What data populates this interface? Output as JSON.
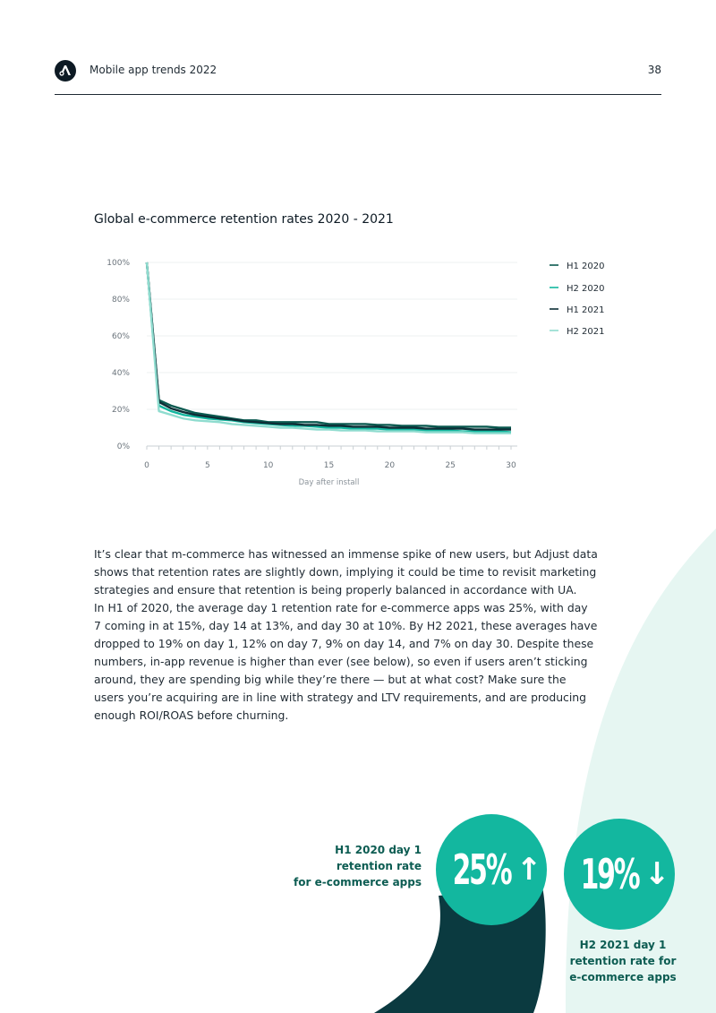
{
  "header": {
    "title": "Mobile app trends 2022",
    "page_number": "38",
    "logo_icon": "adjust-logo-icon"
  },
  "chart_data": {
    "type": "line",
    "title": "Global e-commerce retention rates 2020 - 2021",
    "xlabel": "Day after install",
    "ylabel": "",
    "xlim": [
      0,
      30
    ],
    "ylim": [
      0,
      100
    ],
    "x_ticks": [
      "0",
      "5",
      "10",
      "15",
      "20",
      "25",
      "30"
    ],
    "y_ticks": [
      "0%",
      "20%",
      "40%",
      "60%",
      "80%",
      "100%"
    ],
    "grid": true,
    "legend_position": "top-right",
    "x": [
      0,
      1,
      2,
      3,
      4,
      5,
      6,
      7,
      8,
      9,
      10,
      11,
      12,
      13,
      14,
      15,
      16,
      17,
      18,
      19,
      20,
      21,
      22,
      23,
      24,
      25,
      26,
      27,
      28,
      29,
      30
    ],
    "series": [
      {
        "name": "H1 2020",
        "color": "#0b5a50",
        "values": [
          100,
          25,
          22,
          20,
          18,
          17,
          16,
          15,
          14,
          14,
          13,
          13,
          13,
          13,
          13,
          12,
          12,
          12,
          12,
          11.5,
          11.5,
          11,
          11,
          11,
          10.5,
          10.5,
          10.5,
          10.5,
          10.5,
          10,
          10
        ]
      },
      {
        "name": "H2 2020",
        "color": "#13b79f",
        "values": [
          100,
          22,
          19,
          17,
          16,
          15,
          14.5,
          14,
          13,
          12.5,
          12,
          11.5,
          11,
          11,
          10.5,
          10,
          10,
          9.5,
          9.5,
          9.5,
          9,
          9,
          9,
          8.5,
          8.5,
          8.5,
          8,
          8,
          8,
          8,
          7.5
        ]
      },
      {
        "name": "H1 2021",
        "color": "#0d2e36",
        "values": [
          100,
          24,
          20.5,
          18.5,
          17,
          16,
          15,
          14.5,
          13.5,
          13,
          12.5,
          12,
          12,
          11.5,
          11.5,
          11,
          11,
          10.5,
          10.5,
          10.5,
          10,
          10,
          10,
          9.5,
          9.5,
          9.5,
          9.5,
          9,
          9,
          9,
          9
        ]
      },
      {
        "name": "H2 2021",
        "color": "#8fdccf",
        "values": [
          100,
          19,
          17,
          15,
          14,
          13.5,
          13,
          12,
          11.5,
          11,
          10.5,
          10,
          10,
          9.5,
          9,
          9,
          8.5,
          8.5,
          8.5,
          8,
          8,
          8,
          8,
          7.5,
          7.5,
          7.5,
          7.5,
          7,
          7,
          7,
          7
        ]
      }
    ]
  },
  "body_text": {
    "lines": [
      "It’s clear that m-commerce has witnessed an immense spike of new users, but Adjust data",
      "shows that retention rates are slightly down, implying it could be time to revisit marketing",
      "strategies and ensure that retention is being properly balanced in accordance with UA.",
      "In H1 of 2020, the average day 1 retention rate for e-commerce apps was 25%, with day",
      "7 coming in at 15%, day 14 at 13%, and day 30 at 10%. By H2 2021, these averages have",
      "dropped to 19% on day 1, 12% on day 7, 9% on day 14, and 7% on day 30. Despite these",
      "numbers, in-app revenue is higher than ever (see below), so even if users aren’t sticking",
      "around, they are spending big while they’re there — but at what cost? Make sure the",
      "users you’re acquiring are in line with strategy and LTV requirements, and are producing",
      "enough ROI/ROAS before churning."
    ]
  },
  "stats": {
    "left": {
      "label_lines": [
        "H1 2020 day 1",
        "retention rate",
        "for e-commerce apps"
      ],
      "value": "25%",
      "arrow": "↑",
      "arrow_icon": "arrow-up-icon"
    },
    "right": {
      "label_lines": [
        "H2 2021 day 1",
        "retention rate for",
        "e-commerce apps"
      ],
      "value": "19%",
      "arrow": "↓",
      "arrow_icon": "arrow-down-icon"
    }
  },
  "colors": {
    "accent": "#13b79f",
    "dark_teal": "#0b3a40",
    "light_mint": "#e6f6f2",
    "label_teal": "#0c5c52"
  }
}
